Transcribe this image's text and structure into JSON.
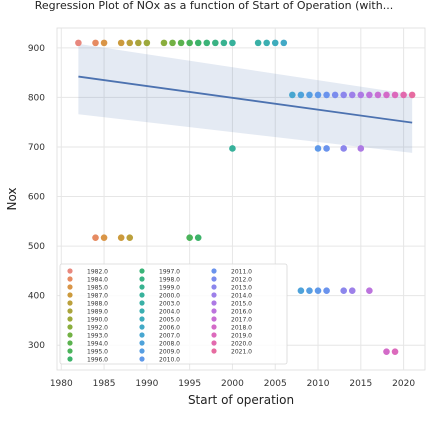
{
  "chart_data": {
    "type": "scatter",
    "title": "Regression Plot of NOx as a function of Start of Operation (with...",
    "xlabel": "Start of operation",
    "ylabel": "Nox",
    "xlim": [
      1979.5,
      2022.5
    ],
    "ylim": [
      250,
      940
    ],
    "x_ticks": [
      1980,
      1985,
      1990,
      1995,
      2000,
      2005,
      2010,
      2015,
      2020
    ],
    "y_ticks": [
      300,
      400,
      500,
      600,
      700,
      800,
      900
    ],
    "grid": true,
    "legend_position": "lower-left",
    "regression": {
      "x": [
        1982,
        2021
      ],
      "y": [
        842,
        749
      ],
      "ci_upper": [
        908,
        806
      ],
      "ci_lower": [
        766,
        688
      ],
      "color": "#4c72b0"
    },
    "legend": [
      "1982.0",
      "1984.0",
      "1985.0",
      "1987.0",
      "1988.0",
      "1989.0",
      "1990.0",
      "1992.0",
      "1993.0",
      "1994.0",
      "1995.0",
      "1996.0",
      "1997.0",
      "1998.0",
      "1999.0",
      "2000.0",
      "2003.0",
      "2004.0",
      "2005.0",
      "2006.0",
      "2007.0",
      "2008.0",
      "2009.0",
      "2010.0",
      "2011.0",
      "2012.0",
      "2013.0",
      "2014.0",
      "2015.0",
      "2016.0",
      "2017.0",
      "2018.0",
      "2019.0",
      "2020.0",
      "2021.0"
    ],
    "series_colors": {
      "1982.0": "#e8887e",
      "1984.0": "#e68b62",
      "1985.0": "#d99547",
      "1987.0": "#cc9a3c",
      "1988.0": "#bba03c",
      "1989.0": "#aaa43c",
      "1990.0": "#9da93c",
      "1992.0": "#8aae3d",
      "1993.0": "#72b144",
      "1994.0": "#5bb24f",
      "1995.0": "#4bb35a",
      "1996.0": "#3db36a",
      "1997.0": "#3bb478",
      "1998.0": "#3ab384",
      "1999.0": "#38b290",
      "2000.0": "#37b19b",
      "2003.0": "#39b0a6",
      "2004.0": "#3bafb1",
      "2005.0": "#3eacbc",
      "2006.0": "#42a9c6",
      "2007.0": "#47a6d0",
      "2008.0": "#4ea2da",
      "2009.0": "#569ee2",
      "2010.0": "#5f99e9",
      "2011.0": "#6a93ed",
      "2012.0": "#7b8ced",
      "2013.0": "#8c86ec",
      "2014.0": "#9d80e9",
      "2015.0": "#ad7ae4",
      "2016.0": "#bc74dd",
      "2017.0": "#c86fd4",
      "2018.0": "#d36bc8",
      "2019.0": "#dc6abc",
      "2020.0": "#e26aae",
      "2021.0": "#e66ba0"
    },
    "points": [
      {
        "x": 1982,
        "y": 910,
        "s": "1982.0"
      },
      {
        "x": 1984,
        "y": 910,
        "s": "1984.0"
      },
      {
        "x": 1985,
        "y": 910,
        "s": "1985.0"
      },
      {
        "x": 1987,
        "y": 910,
        "s": "1987.0"
      },
      {
        "x": 1988,
        "y": 910,
        "s": "1988.0"
      },
      {
        "x": 1989,
        "y": 910,
        "s": "1989.0"
      },
      {
        "x": 1990,
        "y": 910,
        "s": "1990.0"
      },
      {
        "x": 1992,
        "y": 910,
        "s": "1992.0"
      },
      {
        "x": 1993,
        "y": 910,
        "s": "1993.0"
      },
      {
        "x": 1994,
        "y": 910,
        "s": "1994.0"
      },
      {
        "x": 1995,
        "y": 910,
        "s": "1995.0"
      },
      {
        "x": 1996,
        "y": 910,
        "s": "1996.0"
      },
      {
        "x": 1997,
        "y": 910,
        "s": "1997.0"
      },
      {
        "x": 1998,
        "y": 910,
        "s": "1998.0"
      },
      {
        "x": 1999,
        "y": 910,
        "s": "1999.0"
      },
      {
        "x": 2000,
        "y": 910,
        "s": "2000.0"
      },
      {
        "x": 2003,
        "y": 910,
        "s": "2003.0"
      },
      {
        "x": 2004,
        "y": 910,
        "s": "2004.0"
      },
      {
        "x": 2005,
        "y": 910,
        "s": "2005.0"
      },
      {
        "x": 2006,
        "y": 910,
        "s": "2006.0"
      },
      {
        "x": 2007,
        "y": 805,
        "s": "2007.0"
      },
      {
        "x": 2008,
        "y": 805,
        "s": "2008.0"
      },
      {
        "x": 2009,
        "y": 805,
        "s": "2009.0"
      },
      {
        "x": 2010,
        "y": 805,
        "s": "2010.0"
      },
      {
        "x": 2011,
        "y": 805,
        "s": "2011.0"
      },
      {
        "x": 2012,
        "y": 805,
        "s": "2012.0"
      },
      {
        "x": 2013,
        "y": 805,
        "s": "2013.0"
      },
      {
        "x": 2014,
        "y": 805,
        "s": "2014.0"
      },
      {
        "x": 2015,
        "y": 805,
        "s": "2015.0"
      },
      {
        "x": 2016,
        "y": 805,
        "s": "2016.0"
      },
      {
        "x": 2017,
        "y": 805,
        "s": "2017.0"
      },
      {
        "x": 2018,
        "y": 805,
        "s": "2018.0"
      },
      {
        "x": 2019,
        "y": 805,
        "s": "2019.0"
      },
      {
        "x": 2020,
        "y": 805,
        "s": "2020.0"
      },
      {
        "x": 2021,
        "y": 805,
        "s": "2021.0"
      },
      {
        "x": 2000,
        "y": 697,
        "s": "2000.0"
      },
      {
        "x": 2010,
        "y": 697,
        "s": "2010.0"
      },
      {
        "x": 2011,
        "y": 697,
        "s": "2011.0"
      },
      {
        "x": 2013,
        "y": 697,
        "s": "2013.0"
      },
      {
        "x": 2015,
        "y": 697,
        "s": "2015.0"
      },
      {
        "x": 1984,
        "y": 517,
        "s": "1984.0"
      },
      {
        "x": 1985,
        "y": 517,
        "s": "1985.0"
      },
      {
        "x": 1987,
        "y": 517,
        "s": "1987.0"
      },
      {
        "x": 1988,
        "y": 517,
        "s": "1988.0"
      },
      {
        "x": 1995,
        "y": 517,
        "s": "1995.0"
      },
      {
        "x": 1996,
        "y": 517,
        "s": "1996.0"
      },
      {
        "x": 2008,
        "y": 410,
        "s": "2008.0"
      },
      {
        "x": 2009,
        "y": 410,
        "s": "2009.0"
      },
      {
        "x": 2010,
        "y": 410,
        "s": "2010.0"
      },
      {
        "x": 2011,
        "y": 410,
        "s": "2011.0"
      },
      {
        "x": 2013,
        "y": 410,
        "s": "2013.0"
      },
      {
        "x": 2014,
        "y": 410,
        "s": "2014.0"
      },
      {
        "x": 2016,
        "y": 410,
        "s": "2016.0"
      },
      {
        "x": 2018,
        "y": 287,
        "s": "2018.0"
      },
      {
        "x": 2019,
        "y": 287,
        "s": "2019.0"
      }
    ]
  }
}
